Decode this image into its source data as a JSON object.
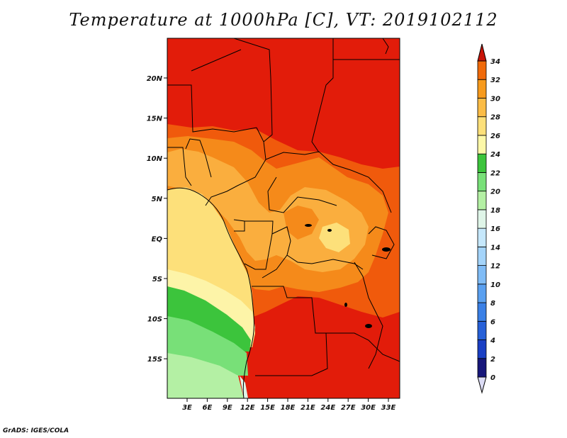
{
  "title": "Temperature at 1000hPa [C], VT: 2019102112",
  "credit": "GrADS: IGES/COLA",
  "lat_labels": [
    "20N",
    "15N",
    "10N",
    "5N",
    "EQ",
    "5S",
    "10S",
    "15S"
  ],
  "lon_labels": [
    "3E",
    "6E",
    "9E",
    "12E",
    "15E",
    "18E",
    "21E",
    "24E",
    "27E",
    "30E",
    "33E"
  ],
  "colorbar": {
    "levels": [
      "0",
      "2",
      "4",
      "6",
      "8",
      "10",
      "12",
      "14",
      "16",
      "18",
      "20",
      "22",
      "24",
      "26",
      "28",
      "30",
      "32",
      "34"
    ],
    "colors": [
      "#16167a",
      "#1a3fc4",
      "#2660d8",
      "#3a80e6",
      "#5aa0f0",
      "#80bcf6",
      "#a4d4fa",
      "#c6e8fc",
      "#dff5e8",
      "#b4f0a4",
      "#78e078",
      "#3cc43c",
      "#fdf8a8",
      "#fde07a",
      "#fbbc46",
      "#f79a1c",
      "#f06a0a",
      "#e42a0a",
      "#c81408"
    ]
  },
  "map_colors": {
    "t32_34": "#e21c0a",
    "t30_32": "#f05a0c",
    "t28_30": "#f58a1a",
    "t26_28": "#faae3e",
    "t24_26": "#fde07a",
    "t22_24": "#fdf4a8",
    "t20_22": "#3cc43c",
    "t18_20": "#78e078",
    "t16_18": "#b4f0a4",
    "t14_16": "#dff5e8"
  }
}
